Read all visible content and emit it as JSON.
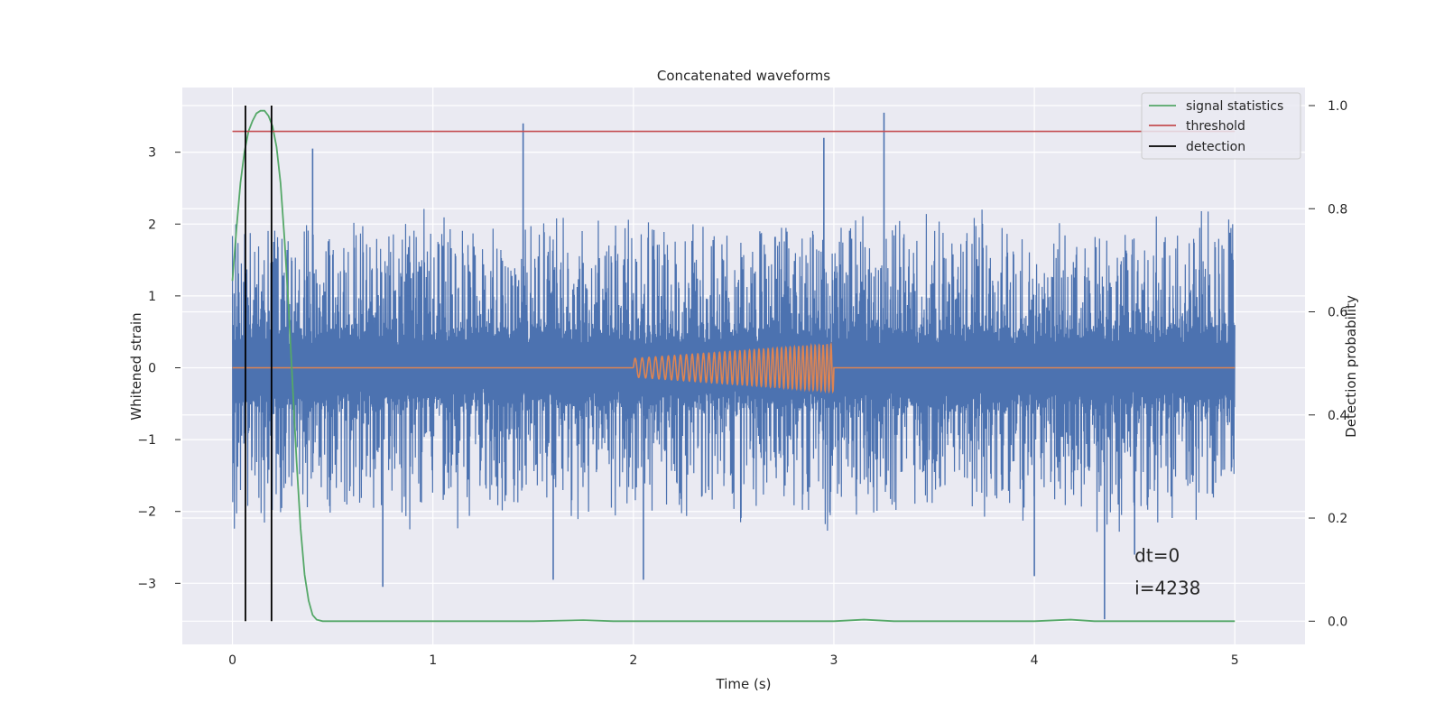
{
  "chart_data": {
    "type": "line",
    "title": "Concatenated waveforms",
    "xlabel": "Time (s)",
    "ylabel": "Whitened strain",
    "y2label": "Detection probability",
    "xlim": [
      -0.25,
      5.35
    ],
    "ylim": [
      -3.85,
      3.9
    ],
    "y2lim": [
      -0.045,
      1.035
    ],
    "xticks": [
      0,
      1,
      2,
      3,
      4,
      5
    ],
    "yticks": [
      -3,
      -2,
      -1,
      0,
      1,
      2,
      3
    ],
    "y2ticks": [
      0.0,
      0.2,
      0.4,
      0.6,
      0.8,
      1.0
    ],
    "xtick_labels": [
      "0",
      "1",
      "2",
      "3",
      "4",
      "5"
    ],
    "ytick_labels": [
      "−3",
      "−2",
      "−1",
      "0",
      "1",
      "2",
      "3"
    ],
    "y2tick_labels": [
      "0.0",
      "0.2",
      "0.4",
      "0.6",
      "0.8",
      "1.0"
    ],
    "grid": true,
    "legend_position": "top-right",
    "colors": {
      "background": "#eaeaf2",
      "noise": "#4c72b0",
      "chirp": "#dd8452",
      "statistics": "#55a868",
      "threshold": "#c44e52",
      "detection": "#000000"
    },
    "series": [
      {
        "name": "",
        "axis": "left",
        "kind": "whitened-noise",
        "x_range": [
          0,
          5
        ],
        "envelope": {
          "inner_amplitude": 0.6,
          "peak_amplitude": 2.3
        },
        "extreme_points": [
          {
            "x": 0.4,
            "y": 3.05
          },
          {
            "x": 0.75,
            "y": -3.05
          },
          {
            "x": 1.45,
            "y": 3.4
          },
          {
            "x": 1.6,
            "y": -2.95
          },
          {
            "x": 2.05,
            "y": -2.95
          },
          {
            "x": 2.95,
            "y": 3.2
          },
          {
            "x": 3.25,
            "y": 3.55
          },
          {
            "x": 4.0,
            "y": -2.9
          },
          {
            "x": 4.35,
            "y": -3.5
          },
          {
            "x": 4.5,
            "y": -2.6
          }
        ]
      },
      {
        "name": "",
        "axis": "left",
        "kind": "chirp",
        "x_range": [
          0,
          5
        ],
        "chirp_start": 2.0,
        "chirp_end": 3.0,
        "amplitude_start": 0.13,
        "amplitude_end": 0.33,
        "cycles": 40
      },
      {
        "name": "signal statistics",
        "axis": "right",
        "points": [
          [
            0.0,
            0.66
          ],
          [
            0.02,
            0.76
          ],
          [
            0.04,
            0.85
          ],
          [
            0.06,
            0.91
          ],
          [
            0.08,
            0.95
          ],
          [
            0.1,
            0.97
          ],
          [
            0.12,
            0.985
          ],
          [
            0.14,
            0.99
          ],
          [
            0.16,
            0.99
          ],
          [
            0.18,
            0.98
          ],
          [
            0.2,
            0.96
          ],
          [
            0.22,
            0.92
          ],
          [
            0.24,
            0.85
          ],
          [
            0.26,
            0.74
          ],
          [
            0.28,
            0.61
          ],
          [
            0.3,
            0.46
          ],
          [
            0.32,
            0.31
          ],
          [
            0.34,
            0.18
          ],
          [
            0.36,
            0.09
          ],
          [
            0.38,
            0.04
          ],
          [
            0.4,
            0.012
          ],
          [
            0.42,
            0.003
          ],
          [
            0.45,
            0.0
          ],
          [
            1.0,
            0.0
          ],
          [
            1.5,
            0.0
          ],
          [
            1.75,
            0.002
          ],
          [
            1.9,
            0.0
          ],
          [
            2.5,
            0.0
          ],
          [
            3.0,
            0.0
          ],
          [
            3.15,
            0.003
          ],
          [
            3.3,
            0.0
          ],
          [
            4.0,
            0.0
          ],
          [
            4.18,
            0.003
          ],
          [
            4.3,
            0.0
          ],
          [
            5.0,
            0.0
          ]
        ]
      },
      {
        "name": "threshold",
        "axis": "right",
        "value": 0.95,
        "x_range": [
          0,
          5
        ]
      },
      {
        "name": "detection",
        "axis": "right",
        "x_values": [
          0.065,
          0.195
        ],
        "y_range": [
          0.0,
          1.0
        ]
      }
    ],
    "annotations": [
      {
        "text": "dt=0",
        "x": 4.5,
        "y": -2.7
      },
      {
        "text": "i=4238",
        "x": 4.5,
        "y": -3.15
      }
    ]
  }
}
